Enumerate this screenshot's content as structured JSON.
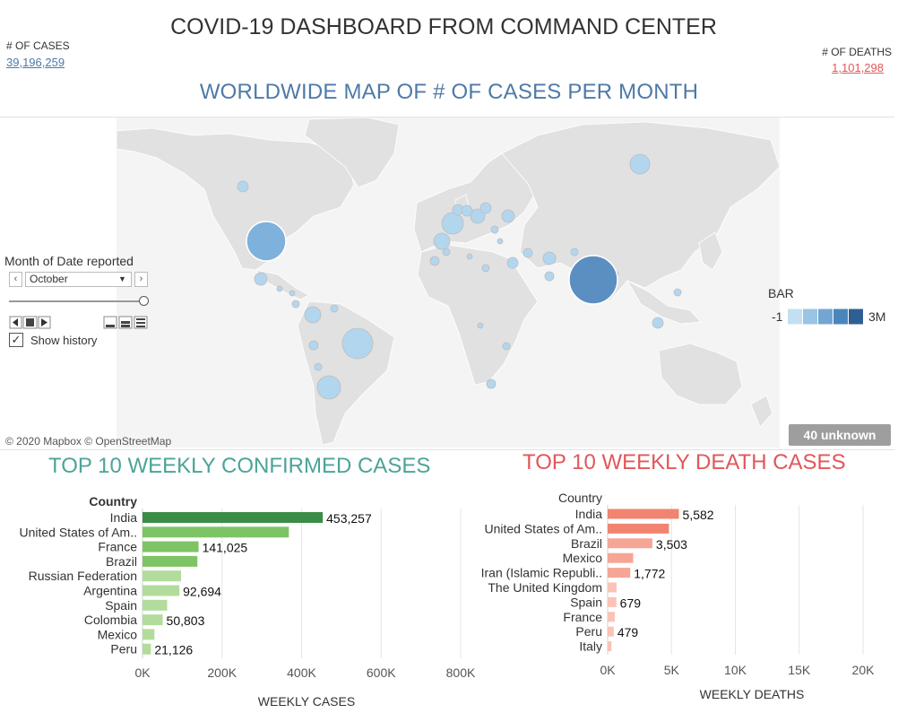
{
  "header": {
    "title": "COVID-19 DASHBOARD FROM COMMAND CENTER",
    "cases_label": "# OF CASES",
    "cases_value": "39,196,259",
    "deaths_label": "# OF DEATHS",
    "deaths_value": "1,101,298"
  },
  "map": {
    "title": "WORLDWIDE MAP OF # OF CASES PER MONTH",
    "attribution": "© 2020 Mapbox © OpenStreetMap",
    "unknown_badge": "40 unknown",
    "colors": {
      "land": "#e1e1e1",
      "water": "#f4f4f4",
      "bubble_light": "#b3d6ef",
      "bubble_dark": "#4e86bb"
    }
  },
  "filter": {
    "label": "Month of Date reported",
    "selected": "October",
    "prev_icon": "chevron-left-icon",
    "next_icon": "chevron-right-icon",
    "history_checked": "✓",
    "history_label": "Show history"
  },
  "legend": {
    "title": "BAR",
    "min": "-1",
    "max": "3M",
    "colors": [
      "#c3e0f2",
      "#9ac4e3",
      "#73a7d2",
      "#4a86bb",
      "#2d5f92"
    ]
  },
  "cases_chart": {
    "title": "TOP 10 WEEKLY CONFIRMED CASES",
    "color_dark": "#3b8c46",
    "color_mid": "#7dc465",
    "color_light": "#b2dc9b"
  },
  "deaths_chart": {
    "title": "TOP 10 WEEKLY DEATH CASES",
    "color_dark": "#f1846f",
    "color_mid": "#f6a594",
    "color_light": "#fac3b6"
  },
  "chart_data": [
    {
      "type": "bar",
      "orientation": "horizontal",
      "title": "TOP 10 WEEKLY CONFIRMED CASES",
      "row_header": "Country",
      "xlabel": "WEEKLY CASES",
      "categories": [
        "India",
        "United States of Am..",
        "France",
        "Brazil",
        "Russian Federation",
        "Argentina",
        "Spain",
        "Colombia",
        "Mexico",
        "Peru"
      ],
      "values": [
        453257,
        368000,
        141025,
        138000,
        97000,
        92694,
        62000,
        50803,
        30000,
        21126
      ],
      "labels": [
        "453,257",
        "",
        "141,025",
        "",
        "",
        "92,694",
        "",
        "50,803",
        "",
        "21,126"
      ],
      "xticks": [
        0,
        200000,
        400000,
        600000,
        800000
      ],
      "xtick_labels": [
        "0K",
        "200K",
        "400K",
        "600K",
        "800K"
      ],
      "xlim": [
        0,
        800000
      ]
    },
    {
      "type": "bar",
      "orientation": "horizontal",
      "title": "TOP 10 WEEKLY DEATH CASES",
      "row_header": "Country",
      "xlabel": "WEEKLY DEATHS",
      "categories": [
        "India",
        "United States of Am..",
        "Brazil",
        "Mexico",
        "Iran (Islamic Republi..",
        "The United Kingdom",
        "Spain",
        "France",
        "Peru",
        "Italy"
      ],
      "values": [
        5582,
        4800,
        3503,
        2000,
        1772,
        700,
        679,
        560,
        479,
        300
      ],
      "labels": [
        "5,582",
        "",
        "3,503",
        "",
        "1,772",
        "",
        "679",
        "",
        "479",
        ""
      ],
      "xticks": [
        0,
        5000,
        10000,
        15000,
        20000
      ],
      "xtick_labels": [
        "0K",
        "5K",
        "10K",
        "15K",
        "20K"
      ],
      "xlim": [
        0,
        20000
      ]
    }
  ]
}
